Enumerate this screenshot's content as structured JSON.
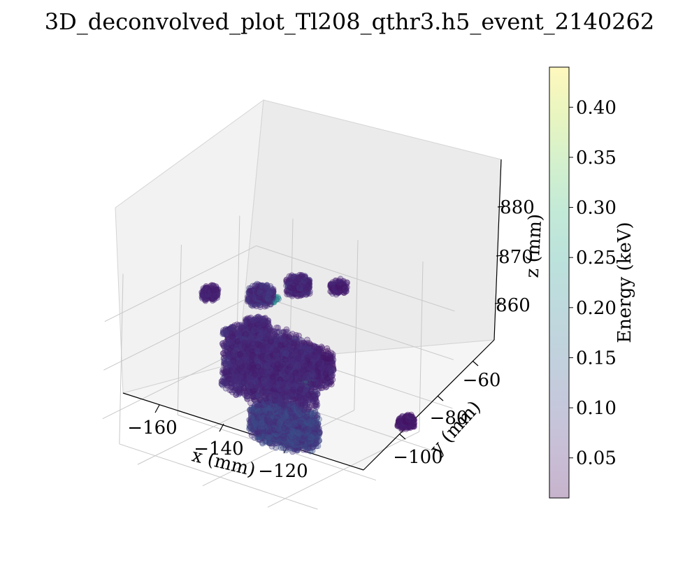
{
  "chart_data": {
    "type": "scatter",
    "title": "3D_deconvolved_plot_Tl208_qthr3.h5_event_2140262",
    "xlabel": "x (mm)",
    "ylabel": "y (mm)",
    "zlabel": "z (mm)",
    "colorbar_label": "Energy (keV)",
    "x_ticks": [
      "−160",
      "−140",
      "−120"
    ],
    "y_ticks": [
      "−100",
      "−80",
      "−60"
    ],
    "z_ticks": [
      "860",
      "870",
      "880"
    ],
    "colorbar_ticks": [
      "0.05",
      "0.10",
      "0.15",
      "0.20",
      "0.25",
      "0.30",
      "0.35",
      "0.40"
    ],
    "colorbar_range": [
      0.01,
      0.44
    ],
    "colormap": [
      "#440154",
      "#482878",
      "#3e4989",
      "#31688e",
      "#26828e",
      "#1f9e89",
      "#35b779",
      "#6ece58",
      "#b5de2b",
      "#fde725"
    ],
    "marker_alpha": 0.3,
    "grid": true,
    "clusters": [
      {
        "x": -143,
        "y": -80,
        "z": 869,
        "rx": 14,
        "ry": 6,
        "rz": 6,
        "e": 0.06
      },
      {
        "x": -133,
        "y": -86,
        "z": 861,
        "rx": 10,
        "ry": 5,
        "rz": 3,
        "e": 0.09
      },
      {
        "x": -128,
        "y": -82,
        "z": 873,
        "rx": 5,
        "ry": 4,
        "rz": 3,
        "e": 0.05
      },
      {
        "x": -150,
        "y": -76,
        "z": 881,
        "rx": 3,
        "ry": 3,
        "rz": 1.5,
        "e": 0.07
      },
      {
        "x": -143,
        "y": -71,
        "z": 883,
        "rx": 3,
        "ry": 2.5,
        "rz": 1.5,
        "e": 0.06
      },
      {
        "x": -135,
        "y": -66,
        "z": 883,
        "rx": 2,
        "ry": 2,
        "rz": 1,
        "e": 0.05
      },
      {
        "x": -162,
        "y": -80,
        "z": 880,
        "rx": 2,
        "ry": 2,
        "rz": 1,
        "e": 0.05
      },
      {
        "x": -146,
        "y": -82,
        "z": 877,
        "rx": 3,
        "ry": 3,
        "rz": 1.5,
        "e": 0.06
      },
      {
        "x": -110,
        "y": -70,
        "z": 862,
        "rx": 2,
        "ry": 2,
        "rz": 1,
        "e": 0.04
      }
    ],
    "hotspots": [
      {
        "x": -134,
        "y": -78,
        "z": 867,
        "e": 0.3
      },
      {
        "x": -146,
        "y": -76,
        "z": 881,
        "e": 0.22
      },
      {
        "x": -131,
        "y": -88,
        "z": 861,
        "e": 0.24
      },
      {
        "x": -140,
        "y": -80,
        "z": 871,
        "e": 0.18
      }
    ]
  }
}
